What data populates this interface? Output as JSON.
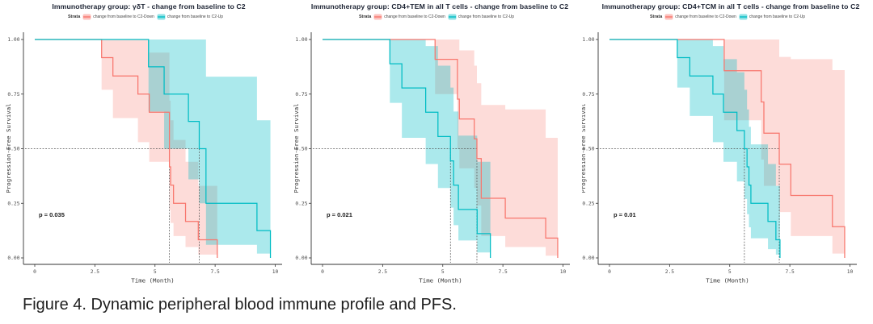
{
  "figure": {
    "caption": "Figure 4. Dynamic peripheral blood immune profile and PFS."
  },
  "legend": {
    "strata_label": "Strata",
    "items": [
      {
        "key": "down",
        "label": "change from baseline to C2-Down",
        "color": "#F8766D",
        "fill": "rgba(248,118,109,0.45)"
      },
      {
        "key": "up",
        "label": "change from baseline to C2-Up",
        "color": "#00BCC4",
        "fill": "rgba(0,188,196,0.45)"
      }
    ]
  },
  "axes": {
    "xlabel": "Time (Month)",
    "ylabel": "Progression-Free Survival",
    "x_ticks": [
      "0",
      "2.5",
      "5",
      "7.5",
      "10"
    ],
    "x_tick_values": [
      0,
      2.5,
      5,
      7.5,
      10
    ],
    "y_ticks": [
      "0.00",
      "0.25",
      "0.50",
      "0.75",
      "1.00"
    ],
    "y_tick_values": [
      0,
      0.25,
      0.5,
      0.75,
      1
    ],
    "xlim": [
      0,
      10.3
    ],
    "ylim": [
      0,
      1
    ],
    "grid": "off",
    "legend_position": "top"
  },
  "style": {
    "down_color": "#F8766D",
    "up_color": "#00BCC4",
    "down_fill": "rgba(248,118,109,0.26)",
    "up_fill": "rgba(0,188,196,0.33)",
    "median_line_color": "#4d4d4d"
  },
  "chart_data": [
    {
      "type": "line",
      "subtype": "kaplan-meier-step",
      "title": "Immunotherapy group: γδT - change from baseline to C2",
      "p_value": "p = 0.035",
      "medians": {
        "down": 5.6,
        "up": 6.84
      },
      "series": [
        {
          "name": "change from baseline to C2-Down",
          "key": "down",
          "points_t_s_lo_hi": [
            [
              0,
              1,
              1,
              1
            ],
            [
              2.78,
              0.917,
              0.77,
              1.0
            ],
            [
              3.25,
              0.833,
              0.64,
              1.0
            ],
            [
              4.29,
              0.75,
              0.53,
              1.0
            ],
            [
              4.76,
              0.667,
              0.44,
              0.94
            ],
            [
              5.6,
              0.417,
              0.22,
              0.72
            ],
            [
              5.65,
              0.333,
              0.16,
              0.63
            ],
            [
              5.77,
              0.25,
              0.1,
              0.54
            ],
            [
              6.27,
              0.167,
              0.05,
              0.44
            ],
            [
              6.8,
              0.083,
              0.015,
              0.33
            ],
            [
              7.59,
              0,
              0,
              0.18
            ]
          ]
        },
        {
          "name": "change from baseline to C2-Up",
          "key": "up",
          "points_t_s_lo_hi": [
            [
              0,
              1,
              1,
              1
            ],
            [
              4.73,
              0.875,
              0.67,
              1.0
            ],
            [
              5.38,
              0.75,
              0.5,
              1.0
            ],
            [
              6.39,
              0.625,
              0.36,
              1.0
            ],
            [
              6.84,
              0.5,
              0.25,
              1.0
            ],
            [
              7.12,
              0.25,
              0.06,
              0.83
            ],
            [
              9.24,
              0.125,
              0.02,
              0.63
            ],
            [
              9.8,
              0,
              0,
              0.45
            ]
          ]
        }
      ]
    },
    {
      "type": "line",
      "subtype": "kaplan-meier-step",
      "title": "Immunotherapy group: CD4+TEM in all T cells - change from baseline to C2",
      "p_value": "p = 0.021",
      "medians": {
        "down": 6.42,
        "up": 5.32
      },
      "series": [
        {
          "name": "change from baseline to C2-Down",
          "key": "down",
          "points_t_s_lo_hi": [
            [
              0,
              1,
              1,
              1
            ],
            [
              4.68,
              0.909,
              0.75,
              1.0
            ],
            [
              5.61,
              0.727,
              0.5,
              1.0
            ],
            [
              5.69,
              0.636,
              0.41,
              0.95
            ],
            [
              6.31,
              0.545,
              0.32,
              0.88
            ],
            [
              6.42,
              0.455,
              0.24,
              0.8
            ],
            [
              6.6,
              0.273,
              0.1,
              0.7
            ],
            [
              7.6,
              0.182,
              0.05,
              0.68
            ],
            [
              9.28,
              0.091,
              0.01,
              0.55
            ],
            [
              9.78,
              0,
              0,
              0.35
            ]
          ]
        },
        {
          "name": "change from baseline to C2-Up",
          "key": "up",
          "points_t_s_lo_hi": [
            [
              0,
              1,
              1,
              1
            ],
            [
              2.8,
              0.889,
              0.71,
              1.0
            ],
            [
              3.3,
              0.778,
              0.55,
              1.0
            ],
            [
              4.29,
              0.667,
              0.43,
              0.97
            ],
            [
              4.8,
              0.556,
              0.32,
              0.88
            ],
            [
              5.32,
              0.444,
              0.23,
              0.78
            ],
            [
              5.45,
              0.333,
              0.15,
              0.67
            ],
            [
              5.65,
              0.222,
              0.08,
              0.56
            ],
            [
              6.43,
              0.111,
              0.025,
              0.44
            ],
            [
              6.98,
              0,
              0,
              0.28
            ]
          ]
        }
      ]
    },
    {
      "type": "line",
      "subtype": "kaplan-meier-step",
      "title": "Immunotherapy group: CD4+TCM in all T cells - change from baseline to C2",
      "p_value": "p = 0.01",
      "medians": {
        "down": 7.06,
        "up": 5.61
      },
      "series": [
        {
          "name": "change from baseline to C2-Down",
          "key": "down",
          "points_t_s_lo_hi": [
            [
              0,
              1,
              1,
              1
            ],
            [
              4.77,
              0.857,
              0.63,
              1.0
            ],
            [
              6.31,
              0.714,
              0.45,
              1.0
            ],
            [
              6.42,
              0.571,
              0.33,
              1.0
            ],
            [
              7.06,
              0.429,
              0.21,
              0.92
            ],
            [
              7.54,
              0.286,
              0.1,
              0.91
            ],
            [
              9.27,
              0.143,
              0.02,
              0.86
            ],
            [
              9.78,
              0,
              0,
              0.6
            ]
          ]
        },
        {
          "name": "change from baseline to C2-Up",
          "key": "up",
          "points_t_s_lo_hi": [
            [
              0,
              1,
              1,
              1
            ],
            [
              2.82,
              0.917,
              0.78,
              1.0
            ],
            [
              3.34,
              0.833,
              0.65,
              1.0
            ],
            [
              4.3,
              0.75,
              0.53,
              0.97
            ],
            [
              4.74,
              0.667,
              0.44,
              0.91
            ],
            [
              5.3,
              0.583,
              0.35,
              0.85
            ],
            [
              5.61,
              0.5,
              0.27,
              0.77
            ],
            [
              5.72,
              0.417,
              0.2,
              0.68
            ],
            [
              5.8,
              0.333,
              0.14,
              0.6
            ],
            [
              5.88,
              0.25,
              0.09,
              0.52
            ],
            [
              6.59,
              0.167,
              0.04,
              0.43
            ],
            [
              6.92,
              0.083,
              0.015,
              0.33
            ],
            [
              7.09,
              0,
              0,
              0.2
            ]
          ]
        }
      ]
    }
  ]
}
